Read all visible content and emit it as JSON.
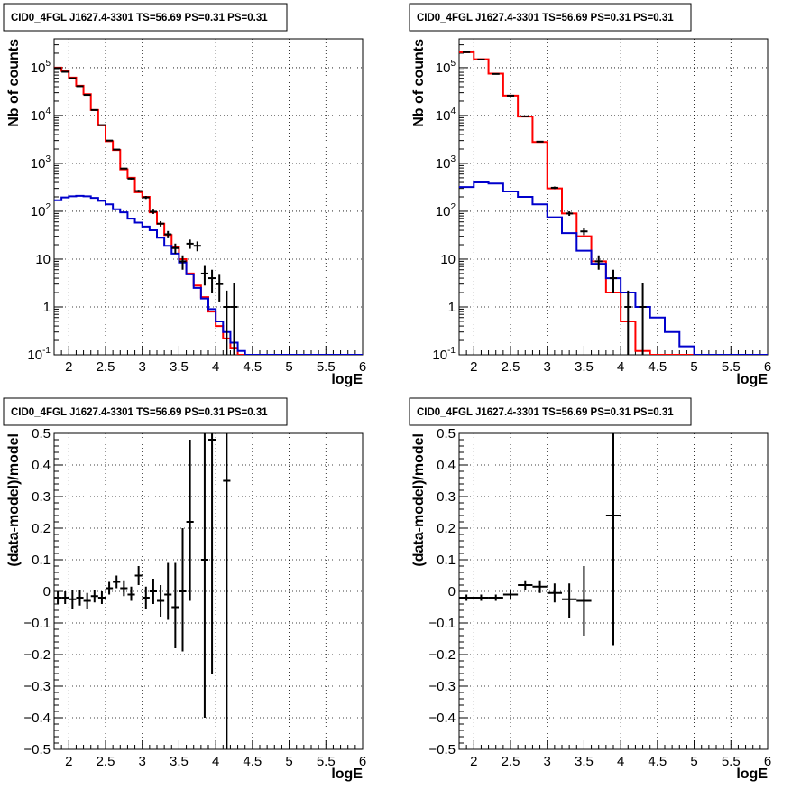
{
  "chart_data": [
    {
      "type": "line",
      "title": "CID0_4FGL J1627.4-3301 TS=56.69 PS=0.31 PS=0.31",
      "xlabel": "logE",
      "ylabel": "Nb of counts",
      "xlim": [
        1.8,
        6.0
      ],
      "ylim": [
        0.1,
        400000
      ],
      "yscale": "log",
      "grid": true,
      "x_ticks": [
        "2",
        "2.5",
        "3",
        "3.5",
        "4",
        "4.5",
        "5",
        "5.5",
        "6"
      ],
      "y_ticks": [
        "10^-1",
        "1",
        "10",
        "10^2",
        "10^3",
        "10^4",
        "10^5"
      ],
      "series": [
        {
          "color": "#ff0000",
          "kind": "step",
          "edges": [
            1.8,
            1.9,
            2.0,
            2.1,
            2.2,
            2.3,
            2.4,
            2.5,
            2.6,
            2.7,
            2.8,
            2.9,
            3.0,
            3.1,
            3.2,
            3.3,
            3.4,
            3.5,
            3.6,
            3.7,
            3.8,
            3.9,
            4.0,
            4.1,
            4.2,
            4.3,
            4.4,
            4.5,
            4.6,
            4.7,
            4.8,
            4.9,
            5.0,
            5.1,
            5.2,
            5.3,
            5.4,
            5.5,
            5.6,
            5.7,
            5.8,
            5.9,
            6.0
          ],
          "values": [
            100000,
            85000,
            62000,
            42000,
            28000,
            13000,
            6200,
            2900,
            1900,
            750,
            500,
            250,
            200,
            95,
            55,
            32,
            18,
            10,
            5,
            2.8,
            1.6,
            0.8,
            0.4,
            0.22,
            0.14,
            0.1,
            0.1,
            0.1,
            0.1,
            0.1,
            0.1,
            0.1,
            0.1,
            0.1,
            0.1,
            0.1,
            0.1,
            0.1,
            0.1,
            0.1,
            0.1,
            0.1
          ]
        },
        {
          "color": "#0000cc",
          "kind": "step",
          "edges": [
            1.8,
            1.9,
            2.0,
            2.1,
            2.2,
            2.3,
            2.4,
            2.5,
            2.6,
            2.7,
            2.8,
            2.9,
            3.0,
            3.1,
            3.2,
            3.3,
            3.4,
            3.5,
            3.6,
            3.7,
            3.8,
            3.9,
            4.0,
            4.1,
            4.2,
            4.3,
            4.4,
            4.5,
            4.6,
            4.7,
            4.8,
            4.9,
            5.0,
            5.1,
            5.2,
            5.3,
            5.4,
            5.5,
            5.6,
            5.7,
            5.8,
            5.9,
            6.0
          ],
          "values": [
            170,
            195,
            205,
            210,
            205,
            190,
            165,
            140,
            110,
            95,
            70,
            58,
            48,
            40,
            28,
            19,
            13,
            8.5,
            4.8,
            2.5,
            1.5,
            0.9,
            0.5,
            0.3,
            0.18,
            0.12,
            0.1,
            0.1,
            0.1,
            0.1,
            0.1,
            0.1,
            0.1,
            0.1,
            0.1,
            0.1,
            0.1,
            0.1,
            0.1,
            0.1,
            0.1,
            0.1
          ]
        },
        {
          "color": "#000000",
          "kind": "points",
          "x": [
            1.85,
            1.95,
            2.05,
            2.15,
            2.25,
            2.35,
            2.45,
            2.55,
            2.65,
            2.75,
            2.85,
            2.95,
            3.05,
            3.15,
            3.25,
            3.35,
            3.45,
            3.55,
            3.65,
            3.75,
            3.85,
            3.95,
            4.05,
            4.15,
            4.25
          ],
          "y": [
            98000,
            82000,
            60000,
            41000,
            27000,
            13000,
            6300,
            3000,
            1950,
            780,
            480,
            265,
            195,
            98,
            55,
            33,
            17,
            9,
            21,
            19,
            5,
            4,
            3,
            1,
            1
          ],
          "yerr_low": [
            310,
            286,
            245,
            202,
            164,
            114,
            79,
            55,
            44,
            28,
            22,
            16,
            14,
            10,
            7,
            5.7,
            4.1,
            3,
            4.6,
            4.4,
            2.2,
            2,
            1.7,
            0.9,
            0.9
          ],
          "yerr_high": [
            310,
            286,
            245,
            202,
            164,
            114,
            79,
            55,
            44,
            28,
            22,
            16,
            14,
            10,
            7,
            5.7,
            4.1,
            3,
            4.6,
            4.4,
            2.2,
            2,
            1.7,
            1.2,
            2.2
          ]
        }
      ]
    },
    {
      "type": "line",
      "title": "CID0_4FGL J1627.4-3301 TS=56.69 PS=0.31 PS=0.31",
      "xlabel": "logE",
      "ylabel": "Nb of counts",
      "xlim": [
        1.8,
        6.0
      ],
      "ylim": [
        0.1,
        400000
      ],
      "yscale": "log",
      "grid": true,
      "x_ticks": [
        "2",
        "2.5",
        "3",
        "3.5",
        "4",
        "4.5",
        "5",
        "5.5",
        "6"
      ],
      "y_ticks": [
        "10^-1",
        "1",
        "10",
        "10^2",
        "10^3",
        "10^4",
        "10^5"
      ],
      "series": [
        {
          "color": "#ff0000",
          "kind": "step",
          "edges": [
            1.8,
            2.0,
            2.2,
            2.4,
            2.6,
            2.8,
            3.0,
            3.2,
            3.4,
            3.6,
            3.8,
            4.0,
            4.2,
            4.4,
            4.6,
            4.8,
            5.0,
            5.2,
            5.4,
            5.6,
            5.8,
            6.0
          ],
          "values": [
            210000,
            150000,
            75000,
            26000,
            9500,
            2800,
            300,
            90,
            30,
            9,
            2,
            0.5,
            0.12,
            0.1,
            0.1,
            0.1,
            0.1,
            0.1,
            0.1,
            0.1,
            0.1
          ],
          "x_end_override": 4.8
        },
        {
          "color": "#0000cc",
          "kind": "step",
          "edges": [
            1.8,
            2.0,
            2.2,
            2.4,
            2.6,
            2.8,
            3.0,
            3.2,
            3.4,
            3.6,
            3.8,
            4.0,
            4.2,
            4.4,
            4.6,
            4.8,
            5.0,
            5.2,
            5.4,
            5.6,
            5.8,
            6.0
          ],
          "values": [
            320,
            400,
            380,
            260,
            200,
            140,
            75,
            35,
            15,
            8,
            4,
            2,
            1,
            0.6,
            0.3,
            0.15,
            0.1,
            0.1,
            0.1,
            0.1,
            0.1
          ]
        },
        {
          "color": "#000000",
          "kind": "points",
          "x": [
            1.9,
            2.1,
            2.3,
            2.5,
            2.7,
            2.9,
            3.1,
            3.3,
            3.5,
            3.7,
            3.9,
            4.1,
            4.3
          ],
          "y": [
            210000,
            148000,
            74000,
            26000,
            9600,
            2850,
            310,
            90,
            38,
            9,
            4,
            1,
            1
          ],
          "yerr_low": [
            460,
            385,
            272,
            161,
            98,
            53,
            18,
            9.5,
            6.2,
            3,
            2,
            0.9,
            0.9
          ],
          "yerr_high": [
            460,
            385,
            272,
            161,
            98,
            53,
            18,
            9.5,
            6.2,
            3,
            2,
            1.2,
            2.2
          ]
        }
      ]
    },
    {
      "type": "scatter",
      "title": "CID0_4FGL J1627.4-3301 TS=56.69 PS=0.31 PS=0.31",
      "xlabel": "logE",
      "ylabel": "(data-model)/model",
      "xlim": [
        1.8,
        6.0
      ],
      "ylim": [
        -0.5,
        0.5
      ],
      "grid": true,
      "x_ticks": [
        "2",
        "2.5",
        "3",
        "3.5",
        "4",
        "4.5",
        "5",
        "5.5",
        "6"
      ],
      "y_ticks": [
        "-0.5",
        "-0.4",
        "-0.3",
        "-0.2",
        "-0.1",
        "0",
        "0.1",
        "0.2",
        "0.3",
        "0.4",
        "0.5"
      ],
      "series": [
        {
          "color": "#000000",
          "x": [
            1.85,
            1.95,
            2.05,
            2.15,
            2.25,
            2.35,
            2.45,
            2.55,
            2.65,
            2.75,
            2.85,
            2.95,
            3.05,
            3.15,
            3.25,
            3.35,
            3.45,
            3.55,
            3.65,
            3.85,
            3.95,
            4.15
          ],
          "y": [
            -0.02,
            -0.02,
            -0.025,
            -0.02,
            -0.03,
            -0.015,
            -0.02,
            0.01,
            0.03,
            0.01,
            -0.01,
            0.05,
            -0.02,
            0.0,
            -0.03,
            -0.01,
            -0.05,
            0.0,
            0.22,
            0.1,
            0.48,
            0.35
          ],
          "xerr": 0.05,
          "yerr_low": [
            0.02,
            0.02,
            0.03,
            0.025,
            0.025,
            0.02,
            0.02,
            0.02,
            0.02,
            0.025,
            0.02,
            0.03,
            0.035,
            0.04,
            0.05,
            0.08,
            0.13,
            0.19,
            0.25,
            0.5,
            0.74,
            0.85
          ],
          "yerr_high": [
            0.02,
            0.02,
            0.03,
            0.025,
            0.025,
            0.02,
            0.02,
            0.02,
            0.02,
            0.025,
            0.025,
            0.03,
            0.035,
            0.04,
            0.05,
            0.1,
            0.14,
            0.2,
            0.26,
            0.5,
            0.74,
            0.85
          ]
        }
      ]
    },
    {
      "type": "scatter",
      "title": "CID0_4FGL J1627.4-3301 TS=56.69 PS=0.31 PS=0.31",
      "xlabel": "logE",
      "ylabel": "(data-model)/model",
      "xlim": [
        1.8,
        6.0
      ],
      "ylim": [
        -0.5,
        0.5
      ],
      "grid": true,
      "x_ticks": [
        "2",
        "2.5",
        "3",
        "3.5",
        "4",
        "4.5",
        "5",
        "5.5",
        "6"
      ],
      "y_ticks": [
        "-0.5",
        "-0.4",
        "-0.3",
        "-0.2",
        "-0.1",
        "0",
        "0.1",
        "0.2",
        "0.3",
        "0.4",
        "0.5"
      ],
      "series": [
        {
          "color": "#000000",
          "x": [
            1.9,
            2.1,
            2.3,
            2.5,
            2.7,
            2.9,
            3.1,
            3.3,
            3.5,
            3.9
          ],
          "y": [
            -0.02,
            -0.02,
            -0.02,
            -0.01,
            0.02,
            0.015,
            -0.005,
            -0.025,
            -0.03,
            0.24
          ],
          "xerr": 0.1,
          "yerr_low": [
            0.01,
            0.01,
            0.01,
            0.015,
            0.015,
            0.02,
            0.03,
            0.06,
            0.11,
            0.41
          ],
          "yerr_high": [
            0.01,
            0.01,
            0.01,
            0.015,
            0.015,
            0.02,
            0.03,
            0.05,
            0.11,
            0.41
          ]
        }
      ]
    }
  ]
}
